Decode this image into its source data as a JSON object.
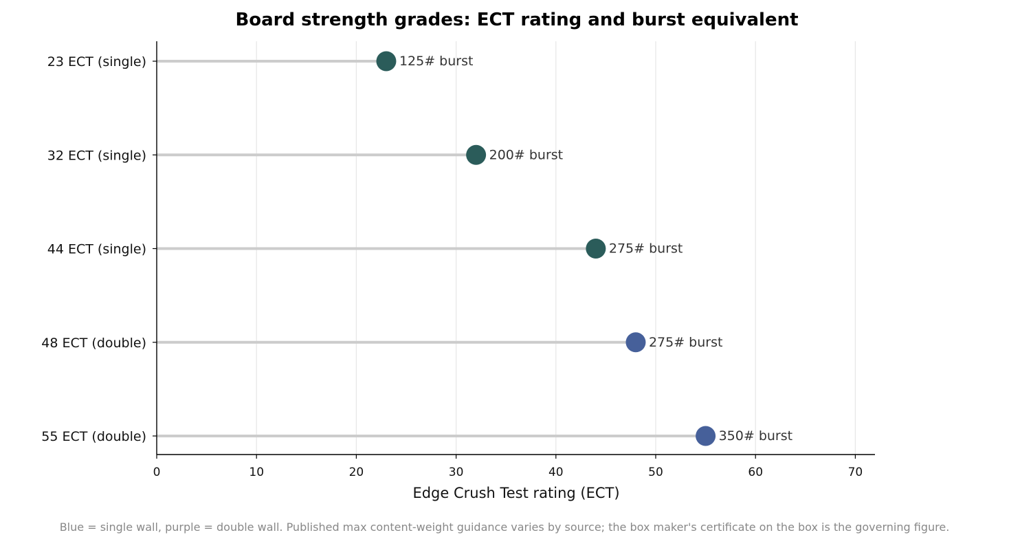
{
  "chart_data": {
    "type": "lollipop",
    "title": "Board strength grades: ECT rating and burst equivalent",
    "xlabel": "Edge Crush Test rating (ECT)",
    "ylabel": "",
    "xlim": [
      0,
      72
    ],
    "x_ticks": [
      0,
      10,
      20,
      30,
      40,
      50,
      60,
      70
    ],
    "grid": "vertical",
    "categories": [
      "23 ECT (single)",
      "32 ECT (single)",
      "44 ECT (single)",
      "48 ECT (double)",
      "55 ECT (double)"
    ],
    "values": [
      23,
      32,
      44,
      48,
      55
    ],
    "point_labels": [
      "125# burst",
      "200# burst",
      "275# burst",
      "275# burst",
      "350# burst"
    ],
    "wall_type": [
      "single",
      "single",
      "single",
      "double",
      "double"
    ],
    "footnote": "Blue = single wall, purple = double wall. Published max content-weight guidance varies by source; the box maker's certificate on the box is the governing figure."
  },
  "colors": {
    "single": "#2b5c5a",
    "double": "#46609a",
    "stem": "#cccccc",
    "grid": "#e6e6e6",
    "axis": "#000000",
    "footnote": "#888888"
  }
}
